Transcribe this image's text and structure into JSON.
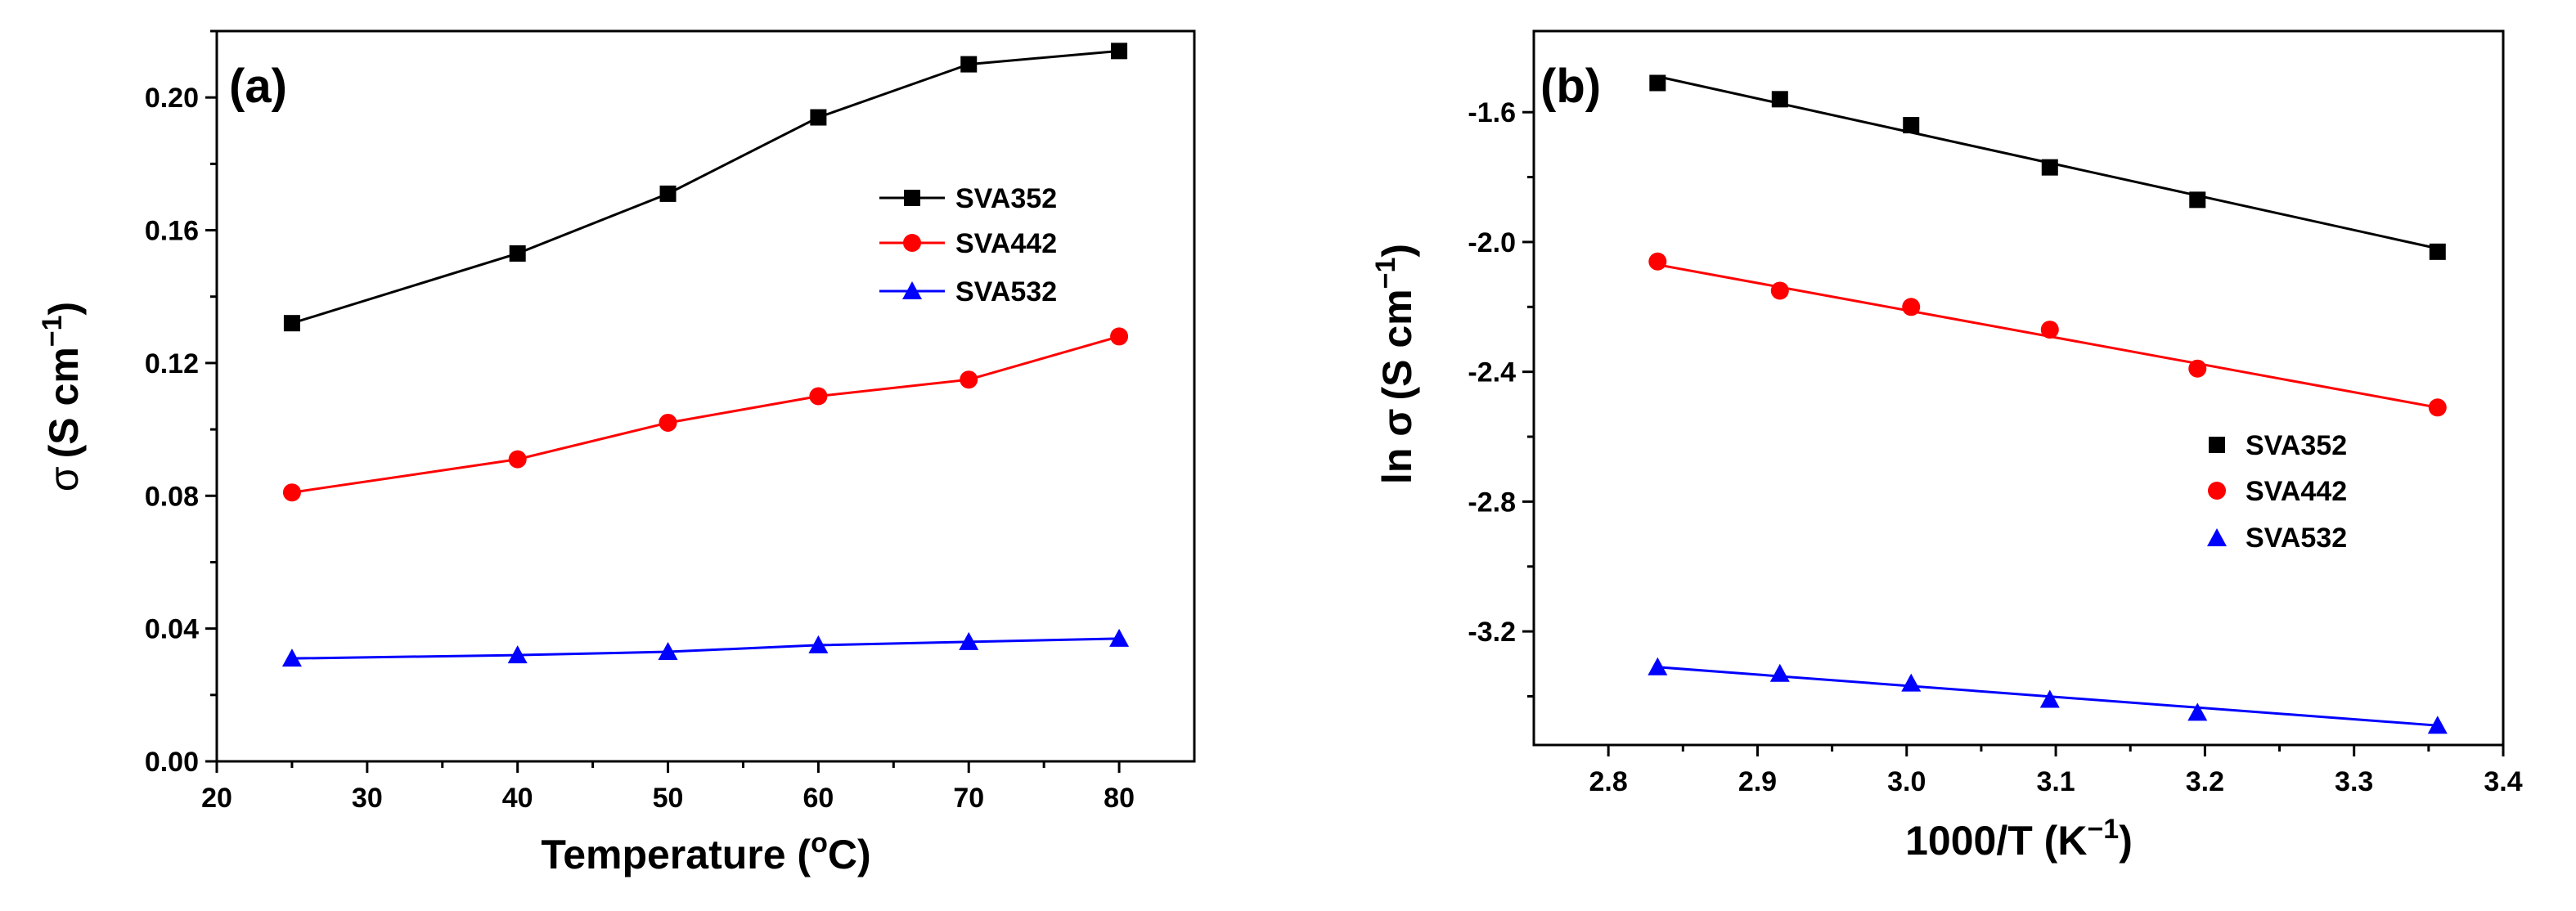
{
  "chart_data": [
    {
      "type": "line",
      "panel_label": "(a)",
      "title": "",
      "xlabel": "Temperature (",
      "xlabel_sup": "o",
      "xlabel_tail": "C)",
      "ylabel": "σ",
      "ylabel_unit": "(S cm",
      "ylabel_sup": "−1",
      "ylabel_tail": ")",
      "xlim": [
        20,
        85
      ],
      "ylim": [
        0.0,
        0.22
      ],
      "xticks": [
        "20",
        "30",
        "40",
        "50",
        "60",
        "70",
        "80"
      ],
      "yticks": [
        "0.00",
        "0.04",
        "0.08",
        "0.12",
        "0.16",
        "0.20"
      ],
      "x": [
        25,
        40,
        50,
        60,
        70,
        80
      ],
      "series": [
        {
          "name": "SVA352",
          "color": "#000000",
          "marker": "square",
          "values": [
            0.132,
            0.153,
            0.171,
            0.194,
            0.21,
            0.214
          ]
        },
        {
          "name": "SVA442",
          "color": "#ff0000",
          "marker": "circle",
          "values": [
            0.081,
            0.091,
            0.102,
            0.11,
            0.115,
            0.128
          ]
        },
        {
          "name": "SVA532",
          "color": "#0000ff",
          "marker": "triangle",
          "values": [
            0.031,
            0.032,
            0.033,
            0.035,
            0.036,
            0.037
          ]
        }
      ],
      "legend_position": "upper-right"
    },
    {
      "type": "scatter",
      "panel_label": "(b)",
      "title": "",
      "xlabel": "1000/T (K",
      "xlabel_sup": "−1",
      "xlabel_tail": ")",
      "ylabel": "ln σ",
      "ylabel_unit": "(S cm",
      "ylabel_sup": "−1",
      "ylabel_tail": ")",
      "xlim": [
        2.75,
        3.4
      ],
      "ylim": [
        -3.55,
        -1.35
      ],
      "xticks": [
        "2.8",
        "2.9",
        "3.0",
        "3.1",
        "3.2",
        "3.3",
        "3.4"
      ],
      "yticks": [
        "-1.6",
        "-2.0",
        "-2.4",
        "-2.8",
        "-3.2"
      ],
      "x": [
        2.833,
        2.915,
        3.003,
        3.096,
        3.195,
        3.356
      ],
      "series": [
        {
          "name": "SVA352",
          "color": "#000000",
          "marker": "square",
          "values": [
            -1.51,
            -1.56,
            -1.64,
            -1.77,
            -1.87,
            -2.03
          ],
          "fit": [
            -1.49,
            -2.02
          ]
        },
        {
          "name": "SVA442",
          "color": "#ff0000",
          "marker": "circle",
          "values": [
            -2.06,
            -2.15,
            -2.2,
            -2.27,
            -2.39,
            -2.51
          ],
          "fit": [
            -2.07,
            -2.51
          ]
        },
        {
          "name": "SVA532",
          "color": "#0000ff",
          "marker": "triangle",
          "values": [
            -3.31,
            -3.33,
            -3.36,
            -3.41,
            -3.45,
            -3.49
          ],
          "fit": [
            -3.31,
            -3.49
          ]
        }
      ],
      "legend_position": "center-right"
    }
  ]
}
